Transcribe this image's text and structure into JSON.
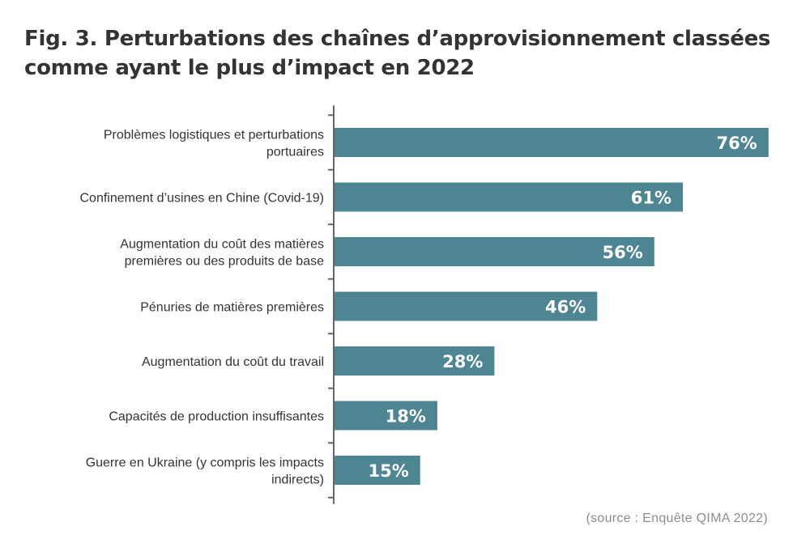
{
  "title_lines": [
    "Fig. 3. Perturbations des chaînes d’approvisionnement classées",
    "comme ayant le plus d’impact en 2022"
  ],
  "source": "(source : Enquête QIMA 2022)",
  "colors": {
    "bar": "#4e8593",
    "bar_label": "#ffffff",
    "category_text": "#333333",
    "axis": "#666666",
    "title": "#333333",
    "source": "#8c8c8c"
  },
  "chart_data": {
    "type": "bar",
    "orientation": "horizontal",
    "title": "Fig. 3. Perturbations des chaînes d’approvisionnement classées comme ayant le plus d’impact en 2022",
    "xlabel": "",
    "ylabel": "",
    "xlim": [
      0,
      80
    ],
    "grid": false,
    "categories": [
      [
        "Problèmes logistiques et perturbations",
        "portuaires"
      ],
      [
        "Confinement d’usines en Chine (Covid-19)"
      ],
      [
        "Augmentation du coût des matières",
        "premières ou des produits de base"
      ],
      [
        "Pénuries de matières premières"
      ],
      [
        "Augmentation du coût du travail"
      ],
      [
        "Capacités de production insuffisantes"
      ],
      [
        "Guerre en Ukraine (y compris les impacts",
        "indirects)"
      ]
    ],
    "values": [
      76,
      61,
      56,
      46,
      28,
      18,
      15
    ],
    "value_labels": [
      "76%",
      "61%",
      "56%",
      "46%",
      "28%",
      "18%",
      "15%"
    ]
  }
}
